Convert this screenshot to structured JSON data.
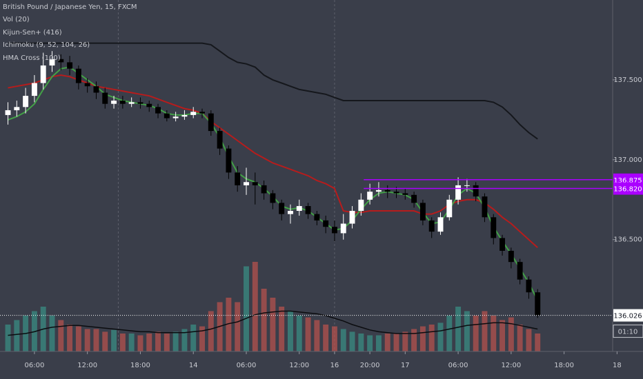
{
  "chart_data": {
    "type": "candlestick",
    "title": "British Pound / Japanese Yen, 15, FXCM",
    "x": [
      3,
      4,
      5,
      6,
      7,
      8,
      9,
      10,
      11,
      12,
      13,
      14,
      15,
      16,
      17,
      18,
      19,
      20,
      21,
      22,
      23,
      24,
      25,
      26,
      27,
      28,
      29,
      30,
      31,
      32,
      33,
      34,
      35,
      36,
      37,
      38,
      39,
      40,
      41,
      42,
      43,
      44,
      45,
      46,
      47,
      48,
      49,
      50,
      51,
      52,
      53,
      54,
      55,
      56,
      57,
      58,
      59,
      60,
      61,
      62,
      63
    ],
    "open": [
      137.28,
      137.31,
      137.33,
      137.4,
      137.48,
      137.59,
      137.63,
      137.61,
      137.57,
      137.48,
      137.46,
      137.42,
      137.35,
      137.37,
      137.35,
      137.36,
      137.35,
      137.33,
      137.29,
      137.26,
      137.27,
      137.28,
      137.3,
      137.29,
      137.18,
      137.07,
      136.92,
      136.84,
      136.86,
      136.84,
      136.79,
      136.73,
      136.66,
      136.68,
      136.71,
      136.66,
      136.62,
      136.58,
      136.54,
      136.6,
      136.68,
      136.75,
      136.8,
      136.81,
      136.8,
      136.79,
      136.78,
      136.73,
      136.62,
      136.55,
      136.64,
      136.75,
      136.84,
      136.84,
      136.77,
      136.64,
      136.51,
      136.43,
      136.36,
      136.25,
      136.17
    ],
    "high": [
      137.36,
      137.37,
      137.45,
      137.53,
      137.67,
      137.68,
      137.66,
      137.65,
      137.59,
      137.51,
      137.49,
      137.45,
      137.4,
      137.4,
      137.39,
      137.39,
      137.37,
      137.35,
      137.31,
      137.3,
      137.31,
      137.33,
      137.32,
      137.31,
      137.2,
      137.09,
      136.96,
      136.95,
      136.92,
      136.87,
      136.81,
      136.75,
      136.72,
      136.75,
      136.73,
      136.68,
      136.65,
      136.62,
      136.66,
      136.71,
      136.79,
      136.85,
      136.86,
      136.84,
      136.83,
      136.82,
      136.8,
      136.75,
      136.64,
      136.67,
      136.78,
      136.89,
      136.88,
      136.86,
      136.79,
      136.66,
      136.53,
      136.45,
      136.38,
      136.27,
      136.19
    ],
    "low": [
      137.22,
      137.27,
      137.29,
      137.36,
      137.44,
      137.55,
      137.56,
      137.53,
      137.44,
      137.42,
      137.38,
      137.32,
      137.32,
      137.32,
      137.33,
      137.32,
      137.3,
      137.26,
      137.24,
      137.24,
      137.25,
      137.26,
      137.26,
      137.15,
      137.03,
      136.88,
      136.8,
      136.78,
      136.72,
      136.75,
      136.69,
      136.62,
      136.6,
      136.65,
      136.63,
      136.59,
      136.54,
      136.49,
      136.5,
      136.57,
      136.65,
      136.72,
      136.77,
      136.76,
      136.76,
      136.75,
      136.7,
      136.59,
      136.51,
      136.53,
      136.62,
      136.72,
      136.8,
      136.74,
      136.61,
      136.47,
      136.4,
      136.32,
      136.22,
      136.13,
      136.01
    ],
    "close": [
      137.31,
      137.33,
      137.4,
      137.48,
      137.59,
      137.63,
      137.61,
      137.57,
      137.48,
      137.46,
      137.42,
      137.35,
      137.37,
      137.35,
      137.36,
      137.35,
      137.33,
      137.29,
      137.26,
      137.27,
      137.28,
      137.3,
      137.29,
      137.18,
      137.07,
      136.92,
      136.84,
      136.86,
      136.84,
      136.79,
      136.73,
      136.66,
      136.68,
      136.71,
      136.66,
      136.62,
      136.58,
      136.54,
      136.6,
      136.68,
      136.75,
      136.8,
      136.81,
      136.8,
      136.79,
      136.78,
      136.73,
      136.62,
      136.55,
      136.64,
      136.75,
      136.84,
      136.84,
      136.77,
      136.64,
      136.51,
      136.43,
      136.36,
      136.25,
      136.17,
      136.026
    ],
    "up_color": "#ffffff",
    "down_color": "#000000",
    "series": [
      {
        "name": "Kijun-Sen+ (416)",
        "color": "#15171c",
        "values": [
          137.73,
          137.73,
          137.73,
          137.73,
          137.73,
          137.73,
          137.73,
          137.73,
          137.73,
          137.73,
          137.73,
          137.73,
          137.73,
          137.73,
          137.73,
          137.73,
          137.73,
          137.73,
          137.73,
          137.73,
          137.73,
          137.73,
          137.73,
          137.72,
          137.68,
          137.64,
          137.61,
          137.6,
          137.58,
          137.53,
          137.5,
          137.48,
          137.46,
          137.44,
          137.43,
          137.42,
          137.41,
          137.39,
          137.37,
          137.37,
          137.37,
          137.37,
          137.37,
          137.37,
          137.37,
          137.37,
          137.37,
          137.37,
          137.37,
          137.37,
          137.37,
          137.37,
          137.37,
          137.37,
          137.37,
          137.36,
          137.33,
          137.28,
          137.22,
          137.17,
          137.13
        ]
      },
      {
        "name": "Ichimoku (9, 52, 104, 26)",
        "color": "#b71c1c",
        "values": [
          137.45,
          137.46,
          137.47,
          137.48,
          137.5,
          137.52,
          137.53,
          137.52,
          137.5,
          137.48,
          137.46,
          137.45,
          137.44,
          137.43,
          137.42,
          137.41,
          137.4,
          137.38,
          137.36,
          137.34,
          137.32,
          137.31,
          137.29,
          137.24,
          137.2,
          137.16,
          137.12,
          137.08,
          137.04,
          137.01,
          136.98,
          136.96,
          136.94,
          136.92,
          136.9,
          136.87,
          136.85,
          136.82,
          136.68,
          136.67,
          136.67,
          136.68,
          136.68,
          136.68,
          136.68,
          136.68,
          136.68,
          136.66,
          136.66,
          136.68,
          136.72,
          136.74,
          136.75,
          136.75,
          136.73,
          136.69,
          136.64,
          136.6,
          136.55,
          136.5,
          136.45
        ]
      },
      {
        "name": "HMA Cross (100)",
        "color": "#43a047",
        "values": [
          137.25,
          137.27,
          137.3,
          137.35,
          137.44,
          137.52,
          137.57,
          137.58,
          137.54,
          137.5,
          137.46,
          137.41,
          137.39,
          137.37,
          137.36,
          137.35,
          137.34,
          137.32,
          137.29,
          137.28,
          137.28,
          137.29,
          137.29,
          137.23,
          137.14,
          137.02,
          136.92,
          136.88,
          136.86,
          136.82,
          136.77,
          136.71,
          136.69,
          136.7,
          136.68,
          136.64,
          136.6,
          136.56,
          136.57,
          136.62,
          136.69,
          136.75,
          136.79,
          136.8,
          136.79,
          136.78,
          136.75,
          136.67,
          136.6,
          136.61,
          136.69,
          136.78,
          136.82,
          136.79,
          136.7,
          136.58,
          136.49,
          136.41,
          136.32,
          136.23,
          136.12
        ]
      }
    ],
    "volume": {
      "name": "Vol (20)",
      "values": [
        30,
        35,
        40,
        45,
        50,
        40,
        35,
        30,
        28,
        25,
        25,
        22,
        24,
        20,
        20,
        18,
        20,
        22,
        20,
        22,
        25,
        30,
        28,
        45,
        55,
        60,
        55,
        95,
        100,
        70,
        60,
        50,
        45,
        40,
        38,
        35,
        30,
        28,
        25,
        22,
        20,
        18,
        18,
        20,
        20,
        22,
        25,
        28,
        30,
        32,
        40,
        50,
        45,
        40,
        45,
        40,
        35,
        38,
        30,
        25,
        20
      ],
      "ma": [
        18,
        19,
        20,
        22,
        25,
        27,
        28,
        29,
        29,
        28,
        27,
        26,
        25,
        24,
        23,
        22,
        22,
        21,
        21,
        21,
        21,
        22,
        23,
        25,
        28,
        31,
        33,
        37,
        41,
        43,
        44,
        45,
        45,
        44,
        43,
        42,
        40,
        37,
        34,
        30,
        27,
        24,
        22,
        21,
        20,
        20,
        20,
        21,
        22,
        23,
        25,
        27,
        29,
        30,
        31,
        32,
        32,
        31,
        29,
        27,
        25
      ],
      "ylim": [
        0,
        100
      ],
      "up_color": "#3a8c83",
      "down_color": "#b4524d",
      "ma_color": "#0b0c0f"
    },
    "hlines": [
      {
        "value": 136.875,
        "color": "#aa00ff",
        "start": 43.3
      },
      {
        "value": 136.82,
        "label": "136.820",
        "color": "#aa00ff",
        "start": 43.3
      }
    ],
    "last": {
      "value": 136.026,
      "color": "#ffffff"
    },
    "countdown": "01:10",
    "session_breaks": [
      15.5,
      40
    ],
    "xlim": [
      2.1,
      71.5
    ],
    "ylim": [
      135.8,
      138.0
    ],
    "yticks": [
      {
        "value": 137.5,
        "label": "137.500"
      },
      {
        "value": 137,
        "label": "137.000"
      },
      {
        "value": 136.5,
        "label": "136.500"
      }
    ],
    "xticks": [
      {
        "value": 6,
        "label": "06:00"
      },
      {
        "value": 12,
        "label": "12:00"
      },
      {
        "value": 18,
        "label": "18:00"
      },
      {
        "value": 24,
        "label": "14"
      },
      {
        "value": 30,
        "label": "06:00"
      },
      {
        "value": 36,
        "label": "12:00"
      },
      {
        "value": 40,
        "label": "16"
      },
      {
        "value": 44,
        "label": "20:00"
      },
      {
        "value": 48,
        "label": "17"
      },
      {
        "value": 54,
        "label": "06:00"
      },
      {
        "value": 60,
        "label": "12:00"
      },
      {
        "value": 66,
        "label": "18:00"
      },
      {
        "value": 72,
        "label": "18"
      }
    ]
  }
}
